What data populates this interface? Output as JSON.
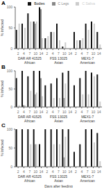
{
  "chart_data": [
    {
      "type": "bar",
      "title": "A",
      "ylabel": "% Infected",
      "ylim": [
        0,
        100
      ],
      "yticks": [
        0,
        50,
        100
      ],
      "grid": false,
      "legend": "upper right",
      "groups": [
        {
          "name": "DAR AR 41525",
          "lineage": "African",
          "categories": [
            "2",
            "4",
            "7",
            "10",
            "14"
          ]
        },
        {
          "name": "FSS 13025",
          "lineage": "Asian",
          "categories": [
            "2",
            "4",
            "7",
            "10",
            "14"
          ]
        },
        {
          "name": "MEX1-7",
          "lineage": "American",
          "categories": [
            "2",
            "4",
            "7",
            "10",
            "14"
          ]
        }
      ],
      "series": [
        {
          "name": "Bodies",
          "color": "#111111",
          "values": [
            45,
            60,
            85,
            65,
            100,
            25,
            40,
            60,
            5,
            0,
            40,
            20,
            60,
            65,
            40
          ]
        },
        {
          "name": "C Legs",
          "color": "#888888",
          "values": [
            0,
            0,
            0,
            60,
            95,
            0,
            0,
            0,
            0,
            0,
            0,
            0,
            0,
            0,
            0
          ]
        },
        {
          "name": "C Saliva",
          "color": "#cccccc",
          "values": [
            60,
            50,
            65,
            65,
            25,
            30,
            40,
            20,
            15,
            0,
            20,
            25,
            45,
            60,
            10
          ]
        }
      ]
    },
    {
      "type": "bar",
      "title": "B",
      "ylabel": "% Infected",
      "ylim": [
        0,
        100
      ],
      "yticks": [
        0,
        50,
        100
      ],
      "grid": false,
      "groups": [
        {
          "name": "DAR AR 41525",
          "lineage": "African",
          "categories": [
            "2",
            "4",
            "7",
            "10",
            "14"
          ]
        },
        {
          "name": "FSS 13025",
          "lineage": "Asian",
          "categories": [
            "2",
            "4",
            "7",
            "10",
            "14"
          ]
        },
        {
          "name": "MEX1-7",
          "lineage": "American",
          "categories": [
            "2",
            "4",
            "7",
            "10",
            "14"
          ]
        }
      ],
      "series": [
        {
          "name": "Bodies",
          "color": "#111111",
          "values": [
            80,
            100,
            85,
            100,
            100,
            60,
            65,
            80,
            95,
            100,
            60,
            80,
            100,
            95,
            90
          ]
        },
        {
          "name": "C Legs",
          "color": "#888888",
          "values": [
            0,
            5,
            0,
            35,
            80,
            0,
            0,
            0,
            25,
            0,
            0,
            0,
            0,
            0,
            0
          ]
        },
        {
          "name": "C Saliva",
          "color": "#cccccc",
          "values": [
            5,
            5,
            45,
            40,
            30,
            0,
            25,
            25,
            65,
            0,
            0,
            35,
            35,
            85,
            15
          ]
        }
      ]
    },
    {
      "type": "bar",
      "title": "C",
      "ylabel": "% Infected",
      "xlabel": "Days after feeding",
      "ylim": [
        0,
        100
      ],
      "yticks": [
        0,
        50,
        100
      ],
      "grid": false,
      "groups": [
        {
          "name": "DAR AR 41525",
          "lineage": "African",
          "categories": [
            "2",
            "4",
            "7",
            "10",
            "14"
          ]
        },
        {
          "name": "FSS 13025",
          "lineage": "Asian",
          "categories": [
            "2",
            "4",
            "7",
            "10",
            "14"
          ]
        },
        {
          "name": "MEX1-7",
          "lineage": "American",
          "categories": [
            "2",
            "4",
            "7",
            "10",
            "14"
          ]
        }
      ],
      "series": [
        {
          "name": "Bodies",
          "color": "#111111",
          "values": [
            100,
            100,
            100,
            100,
            60,
            100,
            100,
            100,
            100,
            100,
            40,
            60,
            100,
            100,
            90
          ]
        },
        {
          "name": "C Legs",
          "color": "#888888",
          "values": [
            0,
            0,
            0,
            60,
            0,
            0,
            0,
            0,
            25,
            0,
            0,
            0,
            0,
            0,
            0
          ]
        },
        {
          "name": "C Saliva",
          "color": "#cccccc",
          "values": [
            0,
            0,
            60,
            60,
            0,
            0,
            60,
            60,
            80,
            0,
            0,
            0,
            0,
            65,
            15
          ]
        }
      ]
    }
  ]
}
